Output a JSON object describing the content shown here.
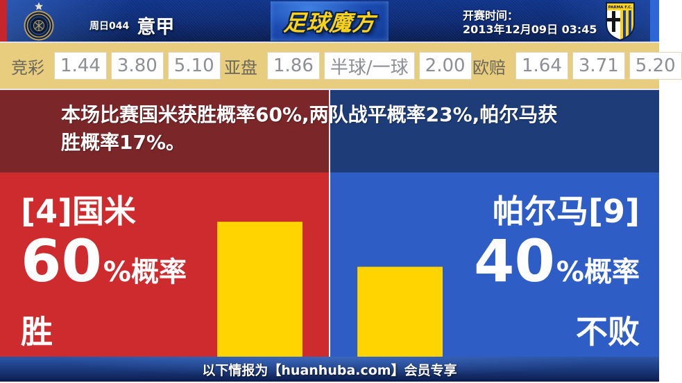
{
  "header": {
    "match_label": "周日044",
    "league": "意甲",
    "site_logo": "足球魔方",
    "kickoff_label": "开赛时间：",
    "kickoff_time": "2013年12月09日 03:45",
    "away_badge_text": "PARMA F.C."
  },
  "odds": {
    "jingcai": {
      "label": "竞彩",
      "values": [
        "1.44",
        "3.80",
        "5.10"
      ]
    },
    "yapan": {
      "label": "亚盘",
      "values": [
        "1.86",
        "半球/一球",
        "2.00"
      ]
    },
    "oupei": {
      "label": "欧赔",
      "values": [
        "1.64",
        "3.71",
        "5.20"
      ]
    }
  },
  "prediction": {
    "line1": "本场比赛国米获胜概率60%,两队战平概率23%,帕尔马获",
    "line2": "胜概率17%。"
  },
  "home_panel": {
    "team": "[4]国米",
    "percent": "60",
    "percent_suffix": "%概率",
    "outcome": "胜",
    "bar_percent": 60
  },
  "away_panel": {
    "team": "帕尔马[9]",
    "percent": "40",
    "percent_suffix": "%概率",
    "outcome": "不败",
    "bar_percent": 40
  },
  "footer": {
    "notice": "以下情报为【huanhuba.com】会员专享"
  },
  "colors": {
    "home_red": "#cd2b2e",
    "home_red_dark": "#7b2629",
    "away_blue": "#2e5dc6",
    "away_blue_dark": "#1d3c78",
    "bar_yellow": "#ffd400",
    "odds_bg": "#e8cd7e",
    "header_navy": "#0d2a72"
  }
}
